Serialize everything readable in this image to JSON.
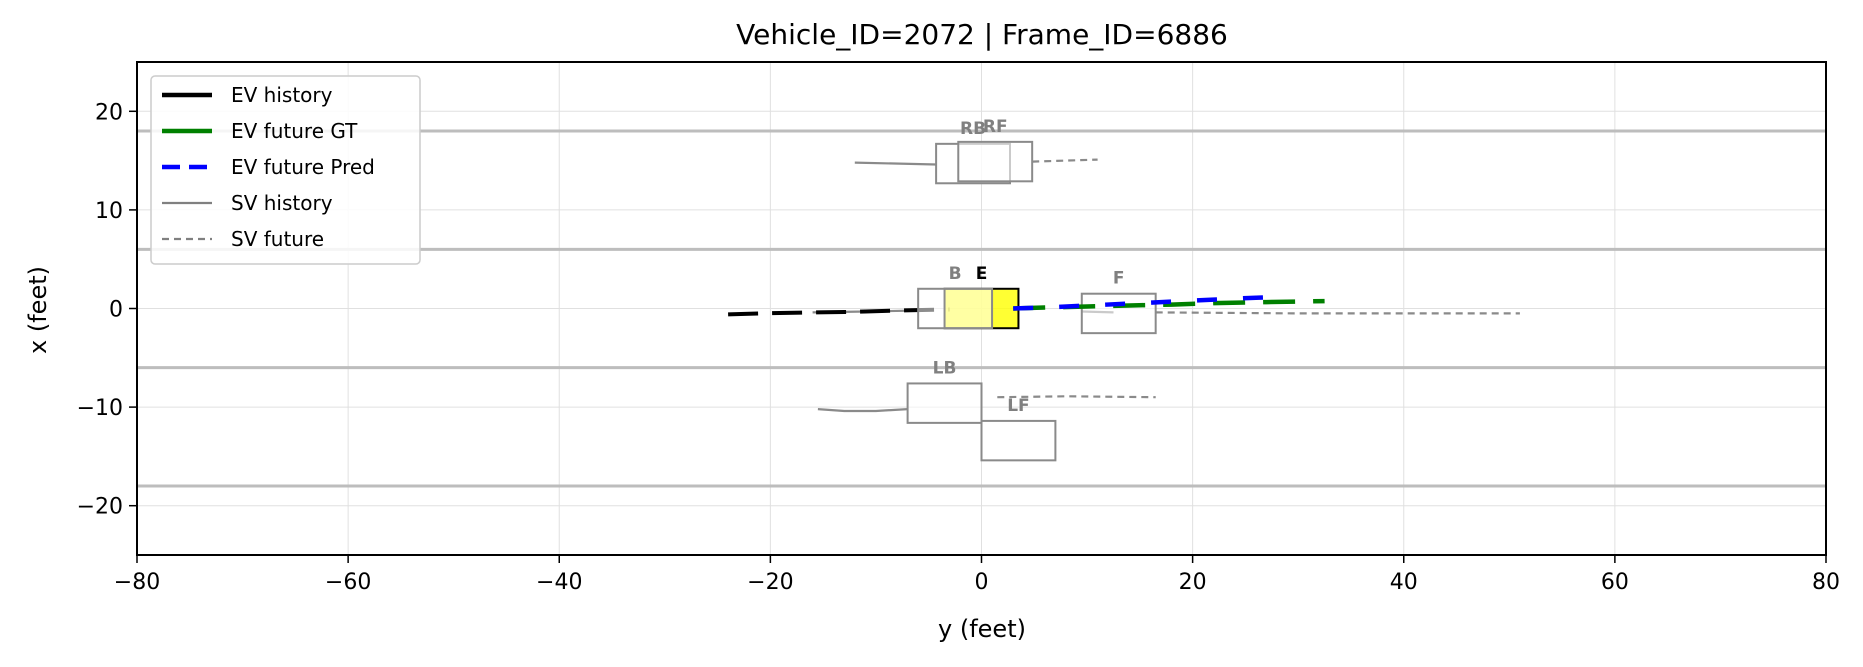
{
  "chart_data": {
    "type": "scatter",
    "title": "Vehicle_ID=2072  |  Frame_ID=6886",
    "xlabel": "y (feet)",
    "ylabel": "x (feet)",
    "xlim": [
      -80,
      80
    ],
    "ylim": [
      -25,
      25
    ],
    "xticks": [
      -80,
      -60,
      -40,
      -20,
      0,
      20,
      40,
      60,
      80
    ],
    "xtick_labels": [
      "−80",
      "−60",
      "−40",
      "−20",
      "0",
      "20",
      "40",
      "60",
      "80"
    ],
    "yticks": [
      -20,
      -10,
      0,
      10,
      20
    ],
    "ytick_labels": [
      "−20",
      "−10",
      "0",
      "10",
      "20"
    ],
    "grid": true,
    "legend_position": "top-left",
    "legend": [
      {
        "label": "EV history",
        "color": "#000000",
        "style": "solid",
        "thick": true
      },
      {
        "label": "EV future GT",
        "color": "#008000",
        "style": "solid",
        "thick": true
      },
      {
        "label": "EV future Pred",
        "color": "#0000ff",
        "style": "dashed",
        "thick": true
      },
      {
        "label": "SV history",
        "color": "#808080",
        "style": "solid",
        "thick": false
      },
      {
        "label": "SV future",
        "color": "#808080",
        "style": "dashed",
        "thick": false
      }
    ],
    "lane_lines": [
      18,
      6,
      -6,
      -18
    ],
    "ev_history": [
      [
        -24,
        -0.6
      ],
      [
        -21,
        -0.5
      ],
      [
        -16,
        -0.4
      ],
      [
        -13,
        -0.35
      ],
      [
        -11,
        -0.3
      ],
      [
        -8,
        -0.2
      ],
      [
        -3,
        -0.1
      ]
    ],
    "ev_future_gt": [
      [
        3,
        0
      ],
      [
        6,
        0.1
      ],
      [
        10,
        0.2
      ],
      [
        14,
        0.3
      ],
      [
        18,
        0.4
      ],
      [
        22,
        0.55
      ],
      [
        27,
        0.65
      ],
      [
        32.5,
        0.75
      ]
    ],
    "ev_future_pred": [
      [
        3,
        0
      ],
      [
        6,
        0.1
      ],
      [
        10,
        0.3
      ],
      [
        14,
        0.5
      ],
      [
        18,
        0.7
      ],
      [
        22,
        0.9
      ],
      [
        26,
        1.1
      ],
      [
        29,
        1.2
      ]
    ],
    "vehicles": [
      {
        "id": "E",
        "label": "E",
        "y_min": -3.5,
        "y_max": 3.5,
        "x_min": -2,
        "x_max": 2,
        "ego": true,
        "color": "#ffff00"
      },
      {
        "id": "B",
        "label": "B",
        "y_min": -6,
        "y_max": 1,
        "x_min": -2,
        "x_max": 2,
        "history": [
          [
            -16,
            -0.4
          ],
          [
            -11,
            -0.3
          ],
          [
            -6,
            -0.2
          ]
        ],
        "future": []
      },
      {
        "id": "F",
        "label": "F",
        "y_min": 9.5,
        "y_max": 16.5,
        "x_min": -2.5,
        "x_max": 1.5,
        "history": [
          [
            9.5,
            -0.3
          ],
          [
            12.5,
            -0.4
          ]
        ],
        "future": [
          [
            16.5,
            -0.4
          ],
          [
            30,
            -0.5
          ],
          [
            51,
            -0.5
          ]
        ]
      },
      {
        "id": "RB",
        "label": "RB",
        "y_min": -4.3,
        "y_max": 2.7,
        "x_min": 12.7,
        "x_max": 16.7,
        "history": [
          [
            -12,
            14.8
          ],
          [
            -4.3,
            14.6
          ]
        ],
        "future": []
      },
      {
        "id": "RF",
        "label": "RF",
        "y_min": -2.2,
        "y_max": 4.8,
        "x_min": 12.9,
        "x_max": 16.9,
        "history": [],
        "future": [
          [
            4.8,
            14.9
          ],
          [
            8,
            15
          ],
          [
            11,
            15.1
          ]
        ]
      },
      {
        "id": "LB",
        "label": "LB",
        "y_min": -7,
        "y_max": 0,
        "x_min": -11.6,
        "x_max": -7.6,
        "history": [
          [
            -15.5,
            -10.2
          ],
          [
            -13,
            -10.4
          ],
          [
            -10,
            -10.4
          ],
          [
            -7,
            -10.2
          ]
        ],
        "future": []
      },
      {
        "id": "LF",
        "label": "LF",
        "y_min": 0,
        "y_max": 7,
        "x_min": -15.4,
        "x_max": -11.4,
        "history": [],
        "future": [
          [
            1.5,
            -9
          ],
          [
            8,
            -8.9
          ],
          [
            16.5,
            -9
          ]
        ]
      }
    ]
  }
}
